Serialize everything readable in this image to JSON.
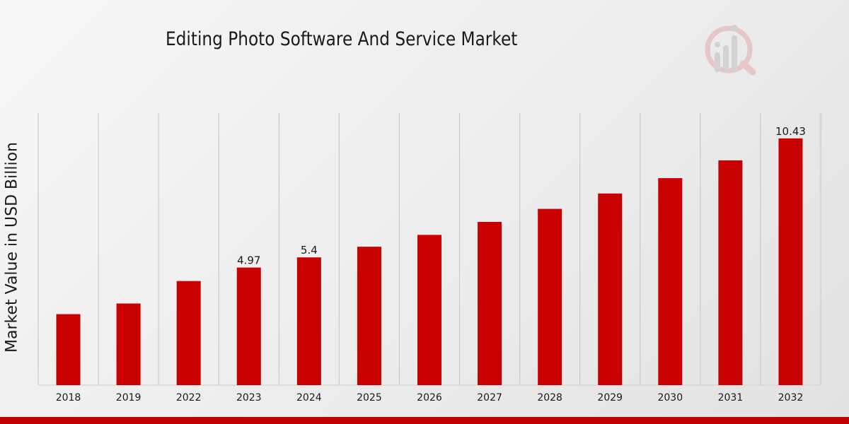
{
  "chart_data": {
    "type": "bar",
    "title": "Editing Photo Software And Service Market",
    "xlabel": "",
    "ylabel": "Market Value in USD Billion",
    "categories": [
      "2018",
      "2019",
      "2022",
      "2023",
      "2024",
      "2025",
      "2026",
      "2027",
      "2028",
      "2029",
      "2030",
      "2031",
      "2032"
    ],
    "values": [
      3.0,
      3.45,
      4.4,
      4.97,
      5.4,
      5.85,
      6.35,
      6.9,
      7.45,
      8.1,
      8.75,
      9.5,
      10.43
    ],
    "data_labels": [
      {
        "category": "2023",
        "text": "4.97"
      },
      {
        "category": "2024",
        "text": "5.4"
      },
      {
        "category": "2032",
        "text": "10.43"
      }
    ],
    "ylim": [
      0,
      11.5
    ],
    "grid": "vertical",
    "bar_color": "#c80000"
  },
  "colors": {
    "brand": "#c00000"
  },
  "logo": {
    "icon": "bar-chart-magnifier-icon"
  }
}
